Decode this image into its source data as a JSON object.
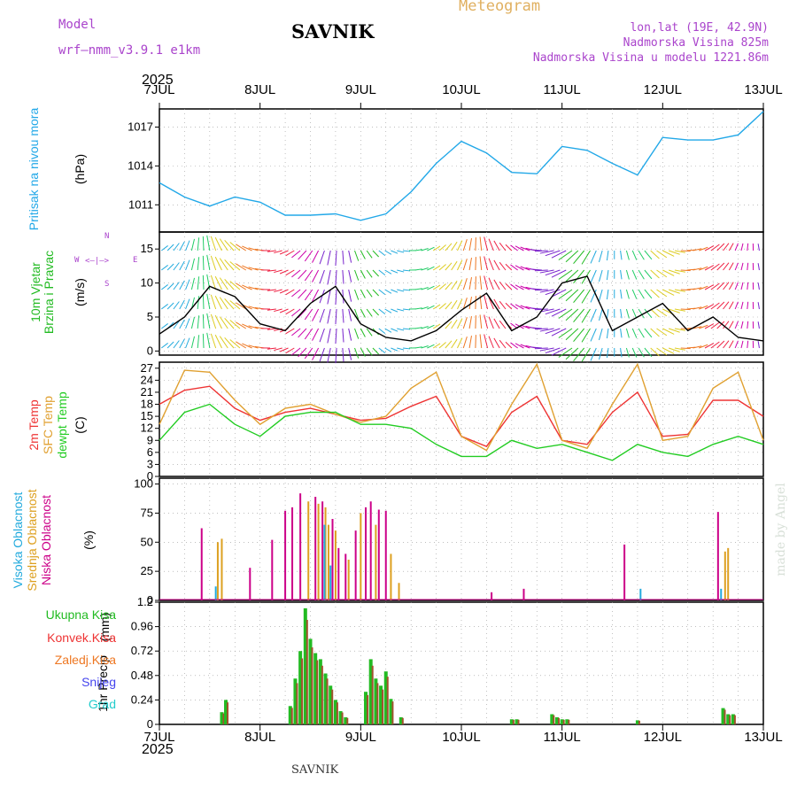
{
  "header": {
    "model_label": "Model",
    "model_name": "wrf–nmm_v3.9.1  e1km",
    "station": "SAVNIK",
    "meteogram": "Meteogram",
    "coords": "lon,lat (19E, 42.9N)",
    "altitude": "Nadmorska Visina 825m",
    "model_altitude": "Nadmorska Visina u modelu 1221.86m",
    "year_top": "2025",
    "year_bottom": "2025",
    "footer_station": "SAVNIK",
    "watermark": "made by Angel"
  },
  "colors": {
    "pressure": "#22a8e8",
    "temp2m": "#ee3333",
    "sfc": "#e0a030",
    "dewpt": "#22cc22",
    "high_cloud": "#22aadd",
    "mid_cloud": "#dda020",
    "low_cloud": "#cc0088",
    "total": "#22bb22",
    "conv": "#ee3333",
    "frz": "#ee7722",
    "snow": "#4444ee",
    "hail": "#22cccc",
    "wind_label": "#22bb22",
    "dir_label": "#aa44cc"
  },
  "x_axis": {
    "ticks": [
      "7JUL",
      "8JUL",
      "9JUL",
      "10JUL",
      "11JUL",
      "12JUL",
      "13JUL"
    ]
  },
  "chart_data": [
    {
      "type": "line",
      "id": "pressure",
      "ylabel": "Pritisak na nivou mora",
      "unit": "(hPa)",
      "ylim": [
        1008.9,
        1018.4
      ],
      "yticks": [
        "1011",
        "1014",
        "1017"
      ],
      "series": [
        {
          "name": "Pritisak na nivou mora",
          "x": [
            0,
            0.25,
            0.5,
            0.75,
            1,
            1.25,
            1.5,
            1.75,
            2,
            2.25,
            2.5,
            2.75,
            3,
            3.25,
            3.5,
            3.75,
            4,
            4.25,
            4.5,
            4.75,
            5,
            5.25,
            5.5,
            5.75,
            6
          ],
          "values": [
            1012.7,
            1011.6,
            1010.9,
            1011.6,
            1011.2,
            1010.2,
            1010.2,
            1010.3,
            1009.8,
            1010.3,
            1012.0,
            1014.2,
            1015.9,
            1015.0,
            1013.5,
            1013.4,
            1015.5,
            1015.2,
            1014.2,
            1013.3,
            1016.2,
            1016.0,
            1016.0,
            1016.4,
            1018.2
          ]
        }
      ],
      "grid": true
    },
    {
      "type": "line",
      "id": "wind",
      "ylabel_line1": "10m Vjetar",
      "ylabel_line2": "Brzina i Pravac",
      "unit": "(m/s)",
      "compass": {
        "n": "N",
        "w": "W",
        "e": "E",
        "s": "S"
      },
      "ylim": [
        -0.6,
        17.5
      ],
      "yticks": [
        "0",
        "5",
        "10",
        "15"
      ],
      "series": [
        {
          "name": "Brzina i Pravac",
          "x": [
            0,
            0.25,
            0.5,
            0.75,
            1,
            1.25,
            1.5,
            1.75,
            2,
            2.25,
            2.5,
            2.75,
            3,
            3.25,
            3.5,
            3.75,
            4,
            4.25,
            4.5,
            4.75,
            5,
            5.25,
            5.5,
            5.75,
            6
          ],
          "values": [
            2.5,
            5,
            9.5,
            8,
            4,
            3,
            7,
            9.5,
            4,
            2,
            1.5,
            3,
            6,
            8.5,
            3,
            5,
            10,
            11,
            3,
            5,
            7,
            3,
            5,
            2,
            1.5
          ]
        }
      ],
      "grid": true
    },
    {
      "type": "line",
      "id": "temperature",
      "ylabel_lines": [
        "2m Temp",
        "SFC Temp",
        "dewpt Temp"
      ],
      "unit": "(C)",
      "ylim": [
        0,
        28.5
      ],
      "yticks": [
        "0",
        "3",
        "6",
        "9",
        "12",
        "15",
        "18",
        "21",
        "24",
        "27"
      ],
      "series": [
        {
          "name": "2m Temp",
          "x": [
            0,
            0.25,
            0.5,
            0.75,
            1,
            1.25,
            1.5,
            1.75,
            2,
            2.25,
            2.5,
            2.75,
            3,
            3.25,
            3.5,
            3.75,
            4,
            4.25,
            4.5,
            4.75,
            5,
            5.25,
            5.5,
            5.75,
            6
          ],
          "values": [
            18,
            21.5,
            22.5,
            17,
            14,
            16,
            17,
            15.5,
            14,
            14.5,
            17.5,
            20,
            10,
            7.5,
            16,
            20,
            9,
            8,
            16,
            21,
            10,
            10.5,
            19,
            19,
            15
          ]
        },
        {
          "name": "SFC Temp",
          "x": [
            0,
            0.25,
            0.5,
            0.75,
            1,
            1.25,
            1.5,
            1.75,
            2,
            2.25,
            2.5,
            2.75,
            3,
            3.25,
            3.5,
            3.75,
            4,
            4.25,
            4.5,
            4.75,
            5,
            5.25,
            5.5,
            5.75,
            6
          ],
          "values": [
            13,
            26.5,
            26,
            19,
            13,
            17,
            18,
            15.5,
            13.5,
            15,
            22,
            26,
            10,
            6.5,
            18,
            28,
            9,
            7,
            18,
            28,
            9,
            10,
            22,
            26,
            9
          ]
        },
        {
          "name": "dewpt Temp",
          "x": [
            0,
            0.25,
            0.5,
            0.75,
            1,
            1.25,
            1.5,
            1.75,
            2,
            2.25,
            2.5,
            2.75,
            3,
            3.25,
            3.5,
            3.75,
            4,
            4.25,
            4.5,
            4.75,
            5,
            5.25,
            5.5,
            5.75,
            6
          ],
          "values": [
            9,
            16,
            18,
            13,
            10,
            15,
            16,
            16,
            13,
            13,
            12,
            8,
            5,
            5,
            9,
            7,
            8,
            6,
            4,
            8,
            6,
            5,
            8,
            10,
            8
          ]
        }
      ],
      "grid": true
    },
    {
      "type": "bar",
      "id": "clouds",
      "ylabel_lines": [
        "Visoka Oblacnost",
        "Srednja Oblacnost",
        "Niska Oblacnost"
      ],
      "unit": "(%)",
      "ylim": [
        0,
        105
      ],
      "yticks": [
        "0",
        "25",
        "50",
        "75",
        "100"
      ],
      "series": [
        {
          "name": "Niska Oblacnost",
          "x": [
            0.42,
            0.9,
            1.12,
            1.25,
            1.32,
            1.4,
            1.55,
            1.62,
            1.72,
            1.78,
            1.85,
            1.95,
            2.05,
            2.1,
            2.18,
            2.25,
            3.3,
            3.62,
            4.62,
            5.55
          ],
          "values": [
            62,
            28,
            52,
            77,
            80,
            92,
            89,
            85,
            70,
            45,
            40,
            60,
            80,
            85,
            78,
            77,
            7,
            10,
            48,
            76
          ]
        },
        {
          "name": "Srednja Oblacnost",
          "x": [
            0.58,
            0.62,
            1.48,
            1.58,
            1.65,
            1.68,
            1.75,
            1.88,
            2.0,
            2.15,
            2.3,
            2.38,
            5.62,
            5.65
          ],
          "values": [
            50,
            53,
            85,
            83,
            80,
            65,
            60,
            35,
            75,
            65,
            40,
            15,
            42,
            45
          ]
        },
        {
          "name": "Visoka Oblacnost",
          "x": [
            0.56,
            1.64,
            1.7,
            4.78,
            5.58
          ],
          "values": [
            12,
            65,
            30,
            10,
            10
          ]
        }
      ],
      "grid": true
    },
    {
      "type": "bar",
      "id": "precip",
      "ylabel": "1hr Precip",
      "unit": "(mm)",
      "ylim": [
        0,
        1.2
      ],
      "yticks": [
        "0",
        "0.24",
        "0.48",
        "0.72",
        "0.96",
        "1.2"
      ],
      "legend": [
        "Ukupna Kisa",
        "Konvek.Kisa",
        "Zaledj.Kisa",
        "Snijeg",
        "Grad"
      ],
      "series": [
        {
          "name": "Ukupna Kisa",
          "x": [
            0.62,
            0.66,
            1.3,
            1.35,
            1.4,
            1.45,
            1.5,
            1.55,
            1.6,
            1.65,
            1.7,
            1.75,
            1.8,
            1.85,
            2.05,
            2.1,
            2.15,
            2.2,
            2.25,
            2.3,
            2.4,
            3.5,
            3.55,
            3.9,
            3.95,
            4.0,
            4.05,
            4.75,
            5.6,
            5.65,
            5.7
          ],
          "values": [
            0.12,
            0.24,
            0.18,
            0.45,
            0.72,
            1.14,
            0.84,
            0.7,
            0.64,
            0.5,
            0.38,
            0.24,
            0.13,
            0.07,
            0.32,
            0.64,
            0.45,
            0.38,
            0.52,
            0.25,
            0.07,
            0.05,
            0.05,
            0.1,
            0.07,
            0.05,
            0.05,
            0.04,
            0.16,
            0.1,
            0.1
          ]
        }
      ],
      "grid": true
    }
  ]
}
